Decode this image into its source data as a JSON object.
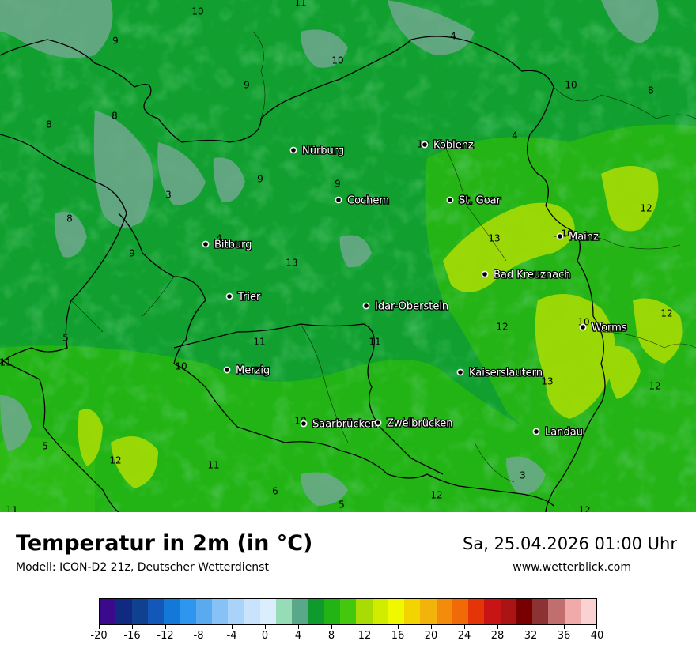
{
  "title": "Temperatur in 2m (in °C)",
  "model_info": "Modell: ICON-D2 21z, Deutscher Wetterdienst",
  "datetime": "Sa, 25.04.2026 01:00 Uhr",
  "website": "www.wetterblick.com",
  "cities": [
    {
      "name": "Nürburg"
    },
    {
      "name": "Koblenz"
    },
    {
      "name": "Cochem"
    },
    {
      "name": "St. Goar"
    },
    {
      "name": "Mainz"
    },
    {
      "name": "Bitburg"
    },
    {
      "name": "Bad Kreuznach"
    },
    {
      "name": "Trier"
    },
    {
      "name": "Idar-Oberstein"
    },
    {
      "name": "Worms"
    },
    {
      "name": "Merzig"
    },
    {
      "name": "Kaiserslautern"
    },
    {
      "name": "Saarbrücken"
    },
    {
      "name": "Zweibrücken"
    },
    {
      "name": "Landau"
    }
  ],
  "isotherm_labels": [
    "10",
    "11",
    "9",
    "4",
    "10",
    "10",
    "9",
    "8",
    "8",
    "8",
    "10",
    "4",
    "3",
    "9",
    "9",
    "12",
    "8",
    "13",
    "4",
    "10",
    "13",
    "9",
    "12",
    "10",
    "11",
    "12",
    "5",
    "11",
    "10",
    "11",
    "10",
    "13",
    "12",
    "5",
    "10",
    "4",
    "12",
    "11",
    "3",
    "6",
    "5",
    "12",
    "11",
    "12"
  ],
  "colorbar": {
    "colors": [
      "#3b0a8c",
      "#0f2a80",
      "#0f4190",
      "#1358b8",
      "#1478d8",
      "#2f96f0",
      "#5aaaf0",
      "#86c2f5",
      "#a9d3f8",
      "#c8e3fb",
      "#dbeefd",
      "#96dcb6",
      "#5aa88a",
      "#0f9a2d",
      "#22b414",
      "#44c80e",
      "#a8dc04",
      "#d2ec00",
      "#f0f800",
      "#f2d400",
      "#f2b40a",
      "#f28c0a",
      "#f06a08",
      "#e43408",
      "#c81414",
      "#aa1414",
      "#780000",
      "#8c3232",
      "#c06e6e",
      "#f0aaaa",
      "#fad2d2"
    ],
    "tick_labels": [
      "-20",
      "-16",
      "-12",
      "-8",
      "-4",
      "0",
      "4",
      "8",
      "12",
      "16",
      "20",
      "24",
      "28",
      "32",
      "36",
      "40"
    ],
    "range": [
      -20,
      40
    ]
  }
}
